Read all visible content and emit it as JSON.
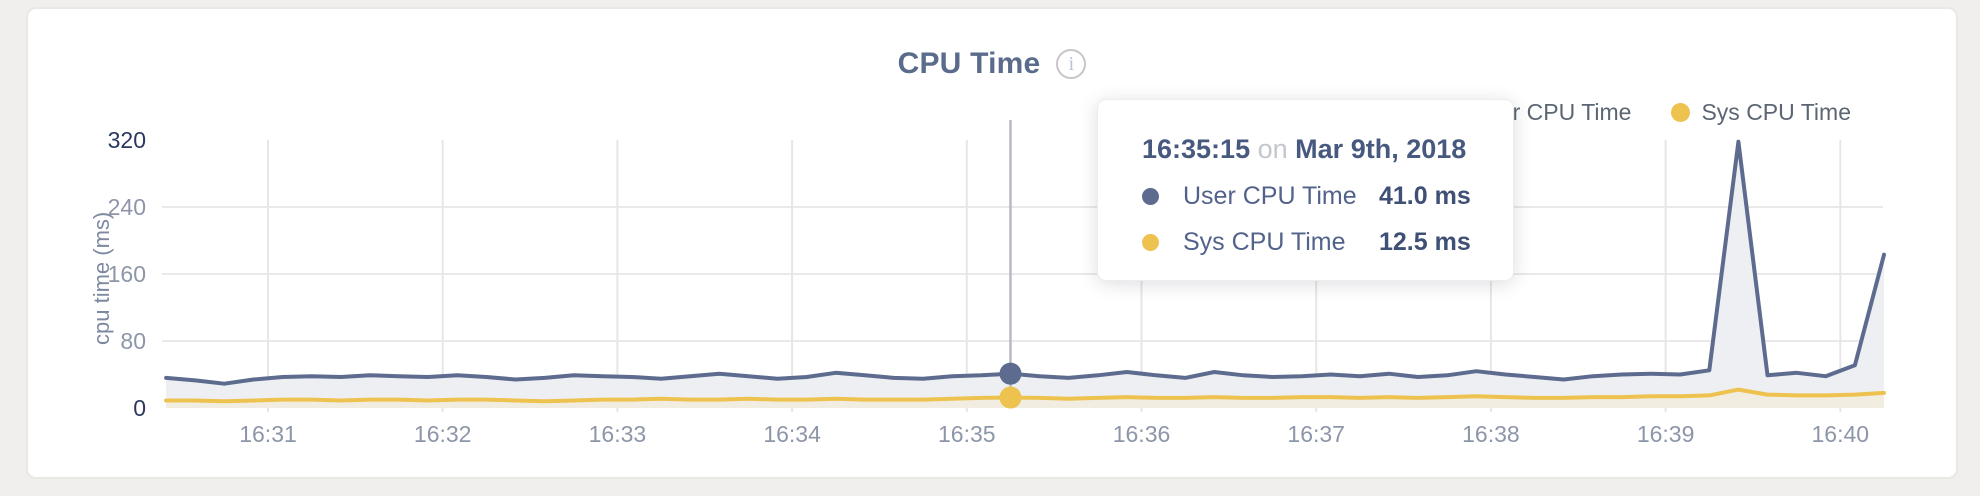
{
  "chart": {
    "title": "CPU Time",
    "info_icon": "i",
    "ylabel": "cpu time (ms)",
    "yticks": [
      "320",
      "240",
      "160",
      "80",
      "0"
    ],
    "xticks": [
      "16:31",
      "16:32",
      "16:33",
      "16:34",
      "16:35",
      "16:36",
      "16:37",
      "16:38",
      "16:39",
      "16:40"
    ],
    "legend": [
      {
        "label": "User CPU Time",
        "color": "#5d6b8e"
      },
      {
        "label": "Sys CPU Time",
        "color": "#eec24f"
      }
    ]
  },
  "tooltip": {
    "time": "16:35:15",
    "conjunction": "on",
    "date": "Mar 9th, 2018",
    "rows": [
      {
        "label": "User CPU Time",
        "value": "41.0 ms",
        "color": "#5d6b8e"
      },
      {
        "label": "Sys CPU Time",
        "value": "12.5 ms",
        "color": "#eec24f"
      }
    ]
  },
  "chart_data": {
    "type": "line",
    "title": "CPU Time",
    "xlabel": "",
    "ylabel": "cpu time (ms)",
    "ylim": [
      0,
      320
    ],
    "ytick_values": [
      320,
      240,
      160,
      80,
      0
    ],
    "x_minute_ticks": [
      "16:31",
      "16:32",
      "16:33",
      "16:34",
      "16:35",
      "16:36",
      "16:37",
      "16:38",
      "16:39",
      "16:40"
    ],
    "x_start_time": "16:30:25",
    "x_end_time": "16:40:15",
    "x_interval_seconds": 10,
    "grid": true,
    "legend_position": "top-right",
    "date": "Mar 9th, 2018",
    "series": [
      {
        "name": "User CPU Time",
        "color": "#5d6b8e",
        "fill": "#edeff3",
        "values": [
          36,
          33,
          29,
          34,
          37,
          38,
          37,
          39,
          38,
          37,
          39,
          37,
          34,
          36,
          39,
          38,
          37,
          35,
          38,
          41,
          38,
          35,
          37,
          42,
          39,
          36,
          35,
          38,
          39,
          41,
          38,
          36,
          39,
          43,
          39,
          36,
          43,
          39,
          37,
          38,
          40,
          38,
          41,
          37,
          39,
          44,
          40,
          37,
          34,
          38,
          40,
          41,
          40,
          45,
          318,
          39,
          42,
          38,
          51,
          183
        ]
      },
      {
        "name": "Sys CPU Time",
        "color": "#eec24f",
        "fill": "#f1ede0",
        "values": [
          9,
          9,
          8,
          9,
          10,
          10,
          9,
          10,
          10,
          9,
          10,
          10,
          9,
          8,
          9,
          10,
          10,
          11,
          10,
          10,
          11,
          10,
          10,
          11,
          10,
          10,
          10,
          11,
          12,
          12.5,
          12,
          11,
          12,
          13,
          12,
          12,
          13,
          12,
          12,
          13,
          13,
          12,
          13,
          12,
          13,
          14,
          13,
          12,
          12,
          13,
          13,
          14,
          14,
          15,
          22,
          16,
          15,
          15,
          16,
          18
        ]
      }
    ],
    "hover": {
      "time": "16:35:15",
      "index": 29,
      "values": {
        "User CPU Time": 41.0,
        "Sys CPU Time": 12.5
      }
    }
  }
}
